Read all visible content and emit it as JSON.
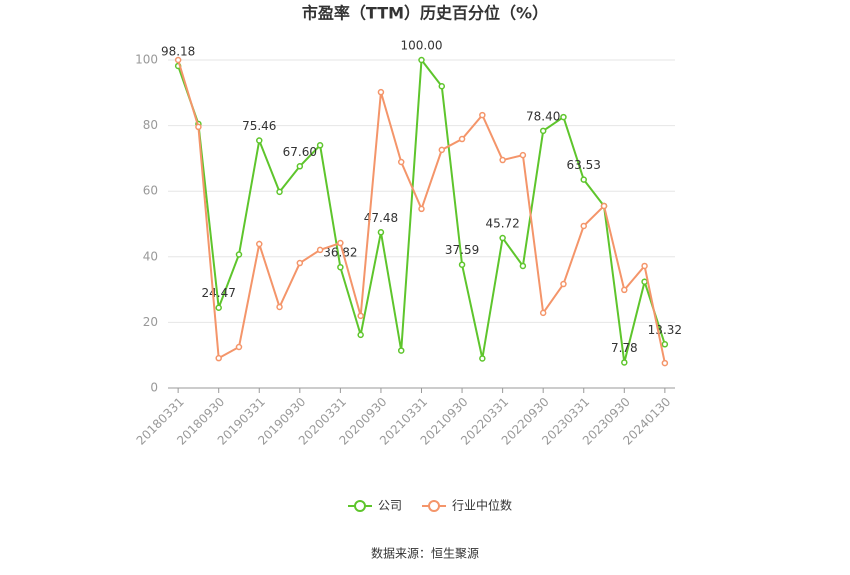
{
  "chart_data": {
    "type": "line",
    "title": "市盈率（TTM）历史百分位（%）",
    "source": "数据来源：恒生聚源",
    "categories": [
      "20180331",
      null,
      "20180930",
      null,
      "20190331",
      null,
      "20190930",
      null,
      "20200331",
      null,
      "20200930",
      null,
      "20210331",
      null,
      "20210930",
      null,
      "20220331",
      null,
      "20220930",
      null,
      "20230331",
      null,
      "20230930",
      null,
      "20240130"
    ],
    "series": [
      {
        "name": "公司",
        "color": "#5ec52c",
        "values": [
          98.18,
          80.5,
          24.47,
          40.7,
          75.46,
          59.8,
          67.6,
          74,
          36.82,
          16.2,
          47.48,
          11.4,
          100,
          92,
          37.59,
          9,
          45.72,
          37.2,
          78.4,
          82.6,
          63.53,
          55.5,
          7.78,
          32.4,
          13.32
        ],
        "value_labels": [
          "98.18",
          null,
          "24.47",
          null,
          "75.46",
          null,
          "67.60",
          null,
          "36.82",
          null,
          "47.48",
          null,
          "100.00",
          null,
          "37.59",
          null,
          "45.72",
          null,
          "78.40",
          null,
          "63.53",
          null,
          "7.78",
          null,
          "13.32"
        ]
      },
      {
        "name": "行业中位数",
        "color": "#f4956a",
        "values": [
          100,
          79.6,
          9.1,
          12.5,
          43.9,
          24.7,
          38.1,
          42.1,
          44.2,
          22,
          90.2,
          68.9,
          54.6,
          72.6,
          75.9,
          83.2,
          69.5,
          71,
          22.9,
          31.7,
          49.4,
          55.5,
          29.9,
          37.2,
          7.6
        ]
      }
    ],
    "ylim": [
      0,
      100
    ],
    "yticks": [
      0,
      20,
      40,
      60,
      80,
      100
    ],
    "grid": true,
    "legend": "bottom"
  }
}
